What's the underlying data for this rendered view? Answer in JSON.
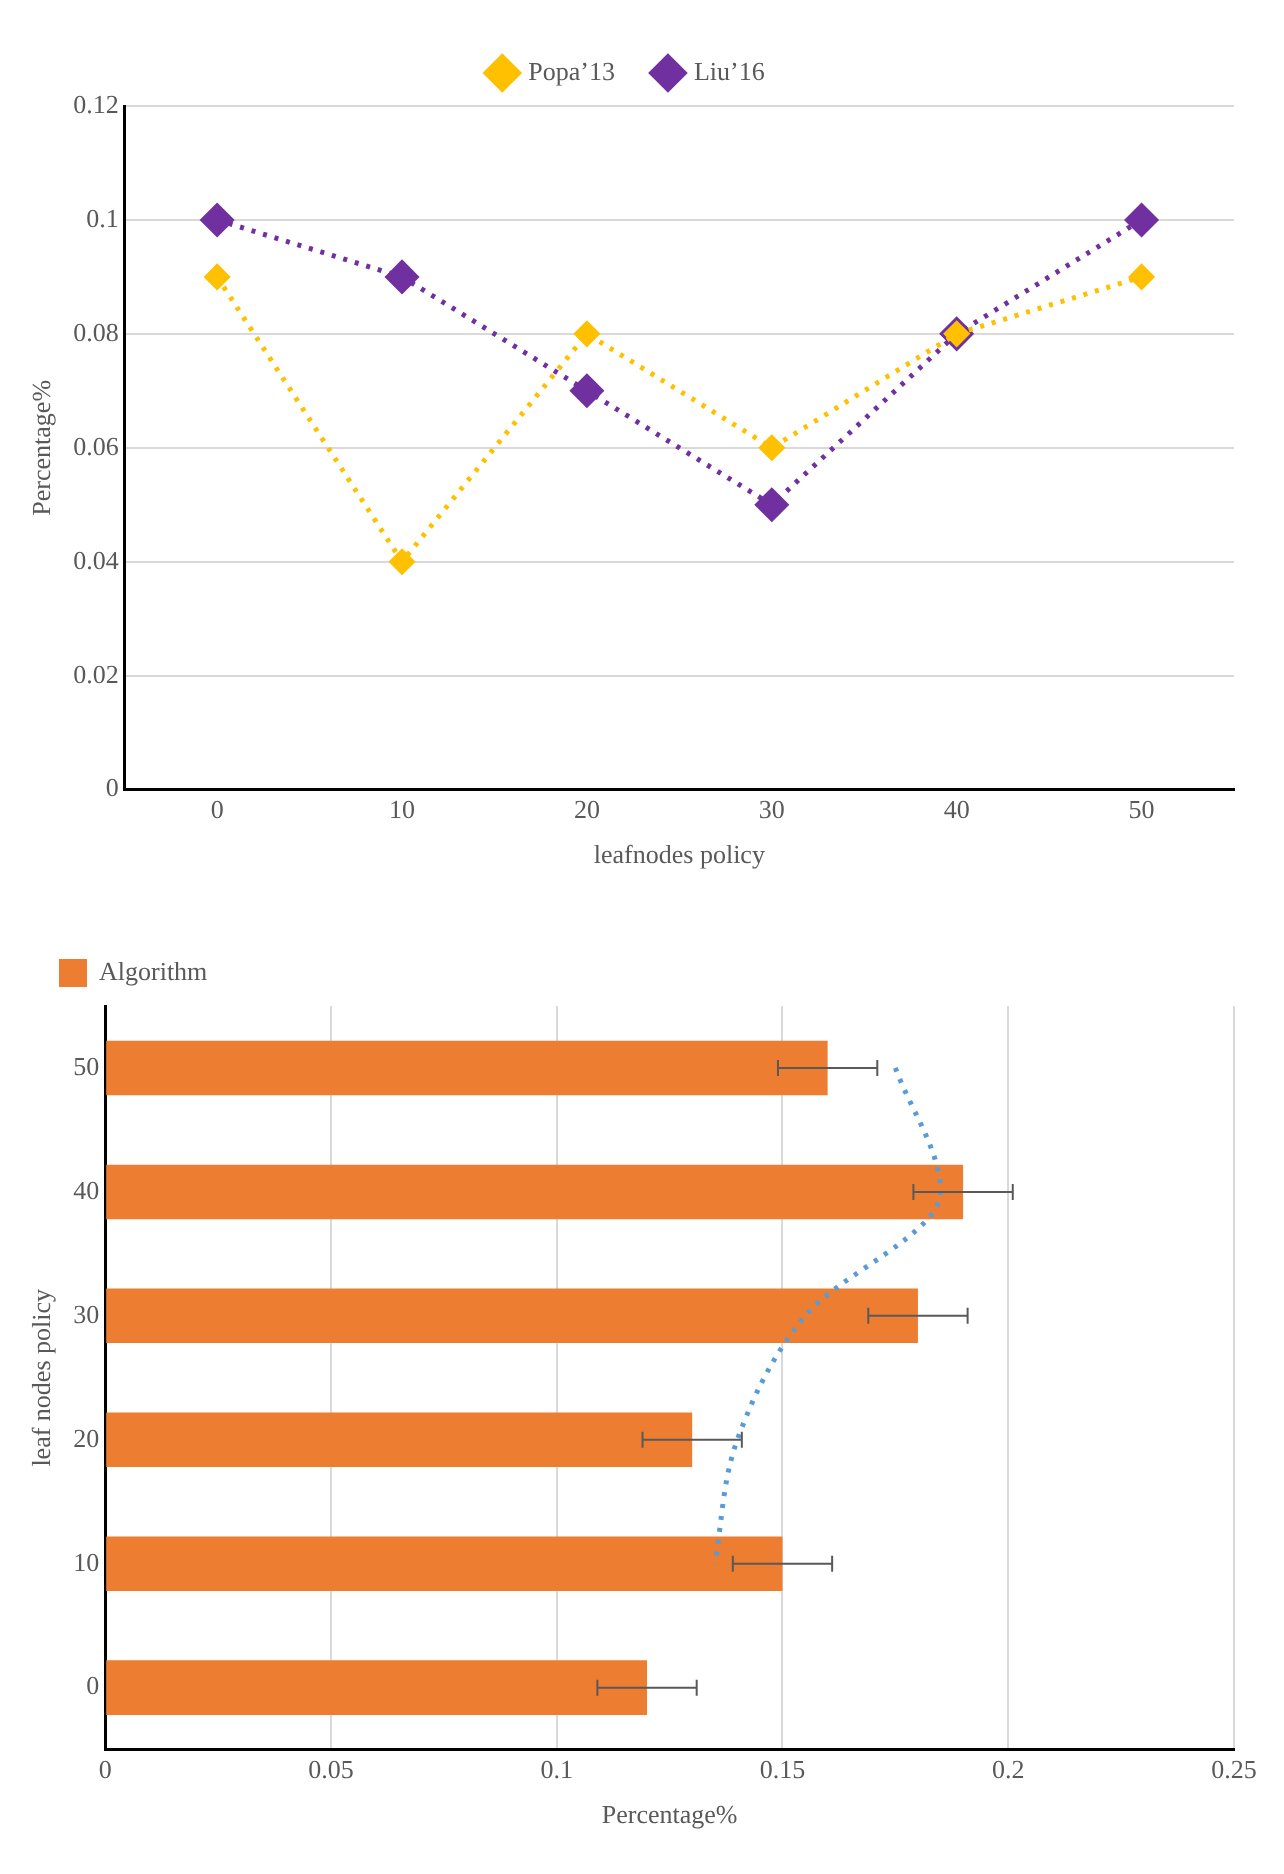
{
  "chart_data": [
    {
      "type": "line",
      "xlabel": "leafnodes policy",
      "ylabel": "Percentage%",
      "categories": [
        "0",
        "10",
        "20",
        "30",
        "40",
        "50"
      ],
      "series": [
        {
          "name": "Popa’13",
          "color": "#ffc000",
          "values": [
            0.09,
            0.04,
            0.08,
            0.06,
            0.08,
            0.09
          ]
        },
        {
          "name": "Liu’16",
          "color": "#7030a0",
          "values": [
            0.1,
            0.09,
            0.07,
            0.05,
            0.08,
            0.1
          ]
        }
      ],
      "ylim": [
        0,
        0.12
      ],
      "yticks": [
        0,
        0.02,
        0.04,
        0.06,
        0.08,
        0.1,
        0.12
      ],
      "grid": "y",
      "legend": "top",
      "marker": "diamond",
      "line_style": "dotted"
    },
    {
      "type": "bar",
      "orientation": "horizontal",
      "xlabel": "Percentage%",
      "ylabel": "leaf nodes policy",
      "categories": [
        "50",
        "40",
        "30",
        "20",
        "10",
        "0"
      ],
      "series": [
        {
          "name": "Algorithm",
          "color": "#ed7d31",
          "values": [
            0.16,
            0.19,
            0.18,
            0.13,
            0.15,
            0.12
          ],
          "errors": [
            0.011,
            0.011,
            0.011,
            0.011,
            0.011,
            0.011
          ]
        },
        {
          "type": "line",
          "color": "#5b9bd5",
          "values": [
            0.175,
            0.185,
            0.155,
            0.14,
            0.135,
            null
          ],
          "line_style": "dotted",
          "marker": "none"
        }
      ],
      "xlim": [
        0,
        0.25
      ],
      "xticks": [
        0,
        0.05,
        0.1,
        0.15,
        0.2,
        0.25
      ],
      "grid": "x",
      "legend": "top left"
    }
  ]
}
